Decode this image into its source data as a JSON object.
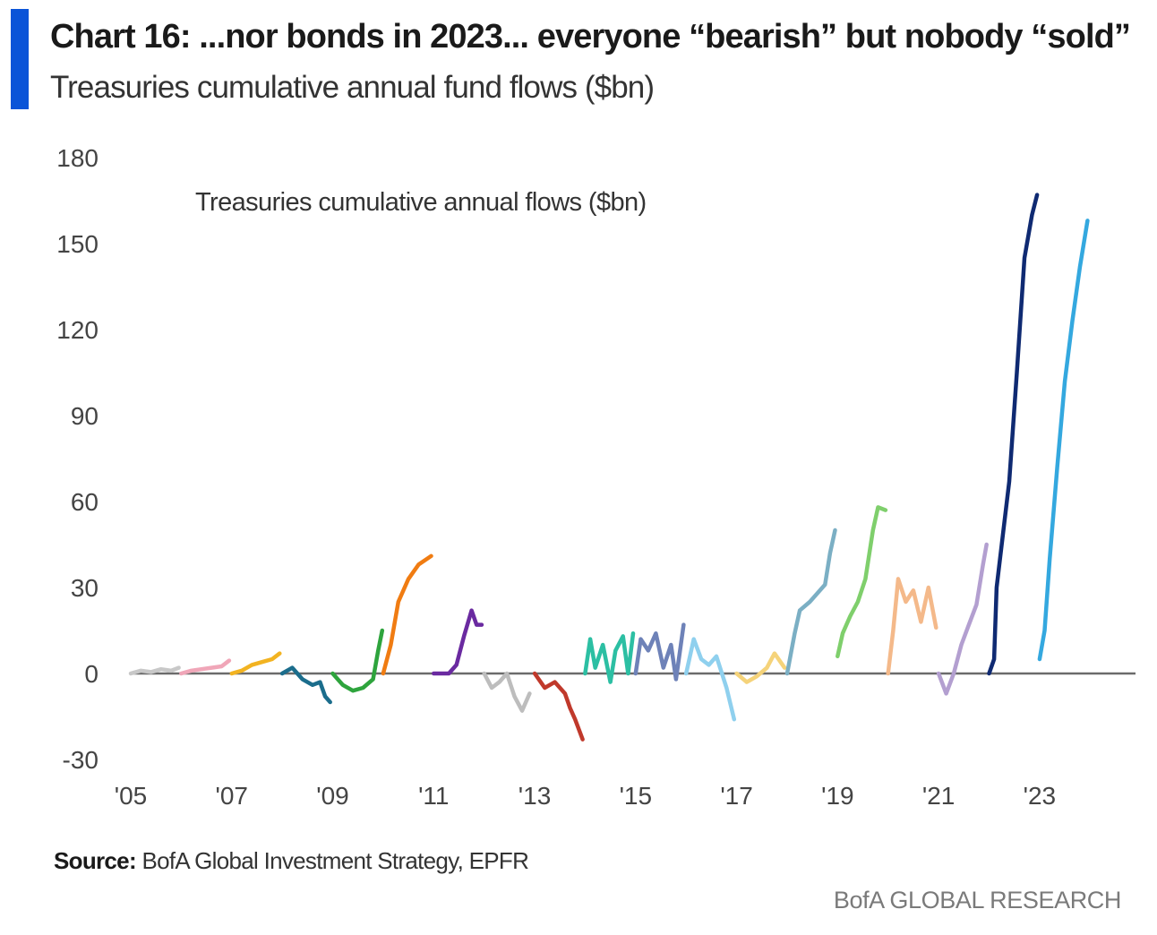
{
  "header": {
    "accent_color": "#0a54d8",
    "title": "Chart 16: ...nor bonds in 2023... everyone “bearish” but nobody “sold”",
    "subtitle": "Treasuries cumulative annual fund flows ($bn)"
  },
  "footer": {
    "source_label": "Source:",
    "source_text": "BofA Global Investment Strategy, EPFR",
    "brand": "BofA GLOBAL RESEARCH"
  },
  "chart_data": {
    "type": "line",
    "annotation": "Treasuries cumulative annual flows ($bn)",
    "xlabel": "",
    "ylabel": "",
    "ylim": [
      -30,
      180
    ],
    "yticks": [
      180,
      150,
      120,
      90,
      60,
      30,
      0,
      -30
    ],
    "xlim": [
      2005,
      2024.9
    ],
    "xticks": [
      {
        "value": 2005,
        "label": "'05"
      },
      {
        "value": 2007,
        "label": "'07"
      },
      {
        "value": 2009,
        "label": "'09"
      },
      {
        "value": 2011,
        "label": "'11"
      },
      {
        "value": 2013,
        "label": "'13"
      },
      {
        "value": 2015,
        "label": "'15"
      },
      {
        "value": 2017,
        "label": "'17"
      },
      {
        "value": 2019,
        "label": "'19"
      },
      {
        "value": 2021,
        "label": "'21"
      },
      {
        "value": 2023,
        "label": "'23"
      }
    ],
    "grid": false,
    "legend": "none",
    "zero_line": true,
    "series": [
      {
        "color": "#c8c8c8",
        "points": [
          [
            2005.0,
            0
          ],
          [
            2005.2,
            1
          ],
          [
            2005.4,
            0.5
          ],
          [
            2005.6,
            1.5
          ],
          [
            2005.8,
            1
          ],
          [
            2005.95,
            2
          ]
        ]
      },
      {
        "color": "#f0a6b8",
        "points": [
          [
            2006.0,
            0
          ],
          [
            2006.2,
            1
          ],
          [
            2006.4,
            1.5
          ],
          [
            2006.6,
            2
          ],
          [
            2006.8,
            2.5
          ],
          [
            2006.95,
            4.5
          ]
        ]
      },
      {
        "color": "#f2b321",
        "points": [
          [
            2007.0,
            0
          ],
          [
            2007.2,
            1
          ],
          [
            2007.4,
            3
          ],
          [
            2007.6,
            4
          ],
          [
            2007.8,
            5
          ],
          [
            2007.95,
            7
          ]
        ]
      },
      {
        "color": "#1b6d8c",
        "points": [
          [
            2008.0,
            0
          ],
          [
            2008.2,
            2
          ],
          [
            2008.4,
            -2
          ],
          [
            2008.6,
            -4
          ],
          [
            2008.75,
            -3
          ],
          [
            2008.85,
            -8
          ],
          [
            2008.95,
            -10
          ]
        ]
      },
      {
        "color": "#2ea43d",
        "points": [
          [
            2009.0,
            0
          ],
          [
            2009.2,
            -4
          ],
          [
            2009.4,
            -6
          ],
          [
            2009.6,
            -5
          ],
          [
            2009.8,
            -2
          ],
          [
            2009.9,
            8
          ],
          [
            2009.98,
            15
          ]
        ]
      },
      {
        "color": "#f07c12",
        "points": [
          [
            2010.0,
            0
          ],
          [
            2010.15,
            10
          ],
          [
            2010.3,
            25
          ],
          [
            2010.5,
            33
          ],
          [
            2010.7,
            38
          ],
          [
            2010.95,
            41
          ]
        ]
      },
      {
        "color": "#6a2aa0",
        "points": [
          [
            2011.0,
            0
          ],
          [
            2011.3,
            0
          ],
          [
            2011.45,
            3
          ],
          [
            2011.6,
            13
          ],
          [
            2011.75,
            22
          ],
          [
            2011.85,
            17
          ],
          [
            2011.95,
            17
          ]
        ]
      },
      {
        "color": "#bdbdbd",
        "points": [
          [
            2012.0,
            0
          ],
          [
            2012.15,
            -5
          ],
          [
            2012.3,
            -3
          ],
          [
            2012.45,
            0
          ],
          [
            2012.6,
            -8
          ],
          [
            2012.75,
            -13
          ],
          [
            2012.9,
            -7
          ]
        ]
      },
      {
        "color": "#c0392b",
        "points": [
          [
            2013.0,
            0
          ],
          [
            2013.2,
            -5
          ],
          [
            2013.4,
            -3
          ],
          [
            2013.6,
            -7
          ],
          [
            2013.7,
            -12
          ],
          [
            2013.8,
            -16
          ],
          [
            2013.95,
            -23
          ]
        ]
      },
      {
        "color": "#2cbfa3",
        "points": [
          [
            2014.0,
            0
          ],
          [
            2014.1,
            12
          ],
          [
            2014.2,
            2
          ],
          [
            2014.35,
            10
          ],
          [
            2014.5,
            -3
          ],
          [
            2014.6,
            8
          ],
          [
            2014.75,
            13
          ],
          [
            2014.85,
            0
          ],
          [
            2014.95,
            14
          ]
        ]
      },
      {
        "color": "#6e82b8",
        "points": [
          [
            2015.0,
            0
          ],
          [
            2015.1,
            12
          ],
          [
            2015.25,
            8
          ],
          [
            2015.4,
            14
          ],
          [
            2015.55,
            2
          ],
          [
            2015.7,
            10
          ],
          [
            2015.8,
            -2
          ],
          [
            2015.95,
            17
          ]
        ]
      },
      {
        "color": "#8fd0ee",
        "points": [
          [
            2016.0,
            0
          ],
          [
            2016.15,
            12
          ],
          [
            2016.3,
            5
          ],
          [
            2016.45,
            3
          ],
          [
            2016.6,
            6
          ],
          [
            2016.8,
            -5
          ],
          [
            2016.95,
            -16
          ]
        ]
      },
      {
        "color": "#f5d37a",
        "points": [
          [
            2017.0,
            0
          ],
          [
            2017.2,
            -3
          ],
          [
            2017.4,
            -1
          ],
          [
            2017.6,
            2
          ],
          [
            2017.75,
            7
          ],
          [
            2017.95,
            2
          ]
        ]
      },
      {
        "color": "#7bafc4",
        "points": [
          [
            2018.0,
            0
          ],
          [
            2018.15,
            14
          ],
          [
            2018.25,
            22
          ],
          [
            2018.45,
            25
          ],
          [
            2018.6,
            28
          ],
          [
            2018.75,
            31
          ],
          [
            2018.85,
            42
          ],
          [
            2018.95,
            50
          ]
        ]
      },
      {
        "color": "#7fcf6c",
        "points": [
          [
            2019.0,
            6
          ],
          [
            2019.1,
            14
          ],
          [
            2019.25,
            20
          ],
          [
            2019.4,
            25
          ],
          [
            2019.55,
            33
          ],
          [
            2019.7,
            50
          ],
          [
            2019.8,
            58
          ],
          [
            2019.95,
            57
          ]
        ]
      },
      {
        "color": "#f4b98a",
        "points": [
          [
            2020.0,
            0
          ],
          [
            2020.1,
            15
          ],
          [
            2020.2,
            33
          ],
          [
            2020.35,
            25
          ],
          [
            2020.5,
            29
          ],
          [
            2020.65,
            18
          ],
          [
            2020.8,
            30
          ],
          [
            2020.95,
            16
          ]
        ]
      },
      {
        "color": "#b39fd0",
        "points": [
          [
            2021.0,
            0
          ],
          [
            2021.15,
            -7
          ],
          [
            2021.3,
            0
          ],
          [
            2021.45,
            10
          ],
          [
            2021.6,
            17
          ],
          [
            2021.75,
            24
          ],
          [
            2021.88,
            38
          ],
          [
            2021.95,
            45
          ]
        ]
      },
      {
        "color": "#0f2a72",
        "points": [
          [
            2022.0,
            0
          ],
          [
            2022.1,
            5
          ],
          [
            2022.15,
            30
          ],
          [
            2022.25,
            45
          ],
          [
            2022.4,
            67
          ],
          [
            2022.55,
            105
          ],
          [
            2022.7,
            145
          ],
          [
            2022.85,
            160
          ],
          [
            2022.95,
            167
          ]
        ]
      },
      {
        "color": "#34a8df",
        "points": [
          [
            2023.0,
            5
          ],
          [
            2023.1,
            15
          ],
          [
            2023.2,
            40
          ],
          [
            2023.35,
            72
          ],
          [
            2023.5,
            102
          ],
          [
            2023.65,
            123
          ],
          [
            2023.8,
            142
          ],
          [
            2023.95,
            158
          ]
        ]
      }
    ]
  }
}
